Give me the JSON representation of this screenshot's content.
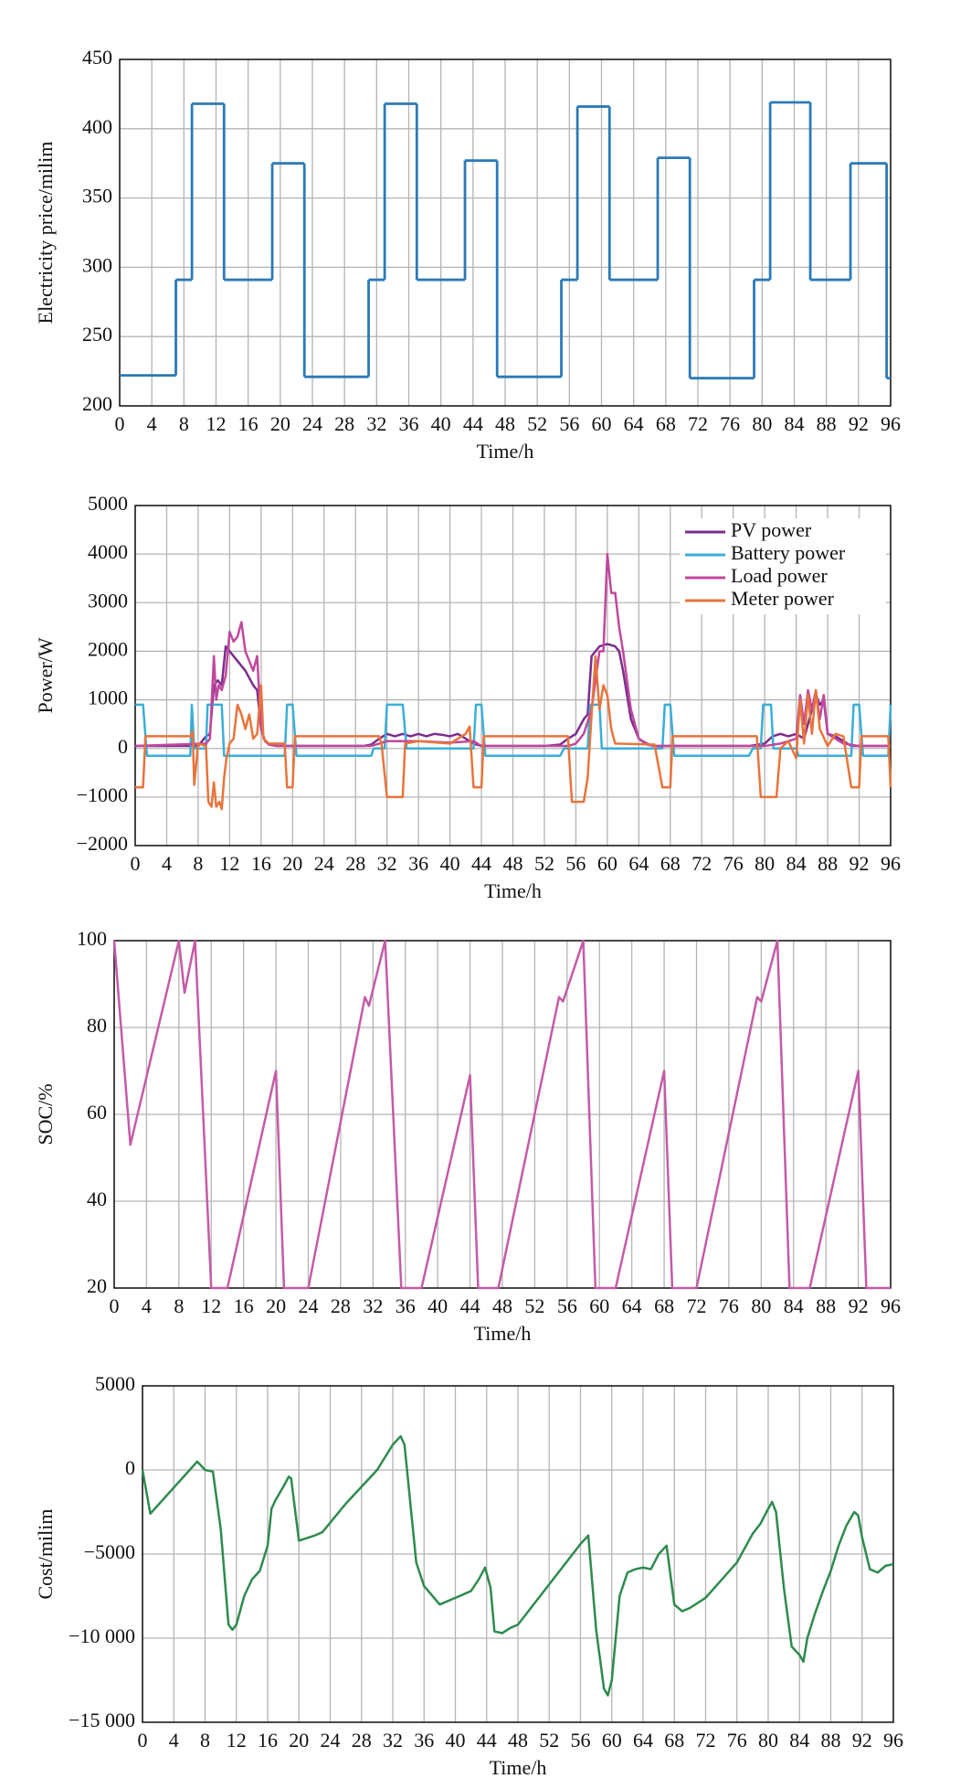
{
  "chart_data": [
    {
      "type": "line",
      "step": "post",
      "xlabel": "Time/h",
      "ylabel": "Electricity price/milim",
      "grid": true,
      "color": "#2a7ab8",
      "x": [
        0,
        7,
        9,
        13,
        19,
        23,
        31,
        33,
        37,
        43,
        47,
        55,
        57,
        61,
        67,
        71,
        79,
        81,
        86,
        91,
        95.5
      ],
      "values": [
        222,
        291,
        418,
        291,
        375,
        221,
        291,
        418,
        291,
        377,
        221,
        291,
        416,
        291,
        379,
        220,
        291,
        419,
        291,
        375,
        220
      ],
      "xlim": [
        0,
        96
      ],
      "xticks": [
        0,
        4,
        8,
        12,
        16,
        20,
        24,
        28,
        32,
        36,
        40,
        44,
        48,
        52,
        56,
        60,
        64,
        68,
        72,
        76,
        80,
        84,
        88,
        92,
        96
      ],
      "ylim": [
        200,
        450
      ],
      "yticks": [
        200,
        250,
        300,
        350,
        400,
        450
      ]
    },
    {
      "type": "line",
      "xlabel": "Time/h",
      "ylabel": "Power/W",
      "grid": true,
      "legend": "upper right",
      "xlim": [
        0,
        96
      ],
      "xticks": [
        0,
        4,
        8,
        12,
        16,
        20,
        24,
        28,
        32,
        36,
        40,
        44,
        48,
        52,
        56,
        60,
        64,
        68,
        72,
        76,
        80,
        84,
        88,
        92,
        96
      ],
      "ylim": [
        -2000,
        5000
      ],
      "yticks": [
        {
          "value": -2000,
          "label": "−2000"
        },
        {
          "value": -1000,
          "label": "−1000"
        },
        0,
        1000,
        2000,
        3000,
        4000,
        5000
      ],
      "series": [
        {
          "name": "PV power",
          "color": "#7b2d8e",
          "x": [
            0,
            8,
            9,
            9.5,
            10,
            10.5,
            11,
            11.5,
            12,
            13,
            14,
            15,
            15.5,
            16,
            16.5,
            17,
            18,
            28,
            29,
            30,
            31,
            32,
            33,
            34,
            35,
            36,
            37,
            38,
            39,
            40,
            41,
            42,
            43,
            44,
            52,
            54,
            55,
            56,
            57,
            57.5,
            58,
            59,
            60,
            61,
            61.5,
            62,
            63,
            64,
            65,
            66,
            78,
            80,
            81,
            82,
            83,
            84,
            85,
            86,
            86.5,
            87,
            87.5,
            88,
            89,
            90,
            91,
            96
          ],
          "values": [
            50,
            50,
            250,
            300,
            1300,
            1400,
            1300,
            2100,
            2000,
            1800,
            1600,
            1300,
            1200,
            400,
            150,
            80,
            50,
            50,
            50,
            80,
            200,
            300,
            250,
            300,
            250,
            300,
            250,
            300,
            280,
            250,
            300,
            200,
            100,
            50,
            50,
            80,
            200,
            300,
            600,
            700,
            1900,
            2100,
            2150,
            2100,
            2000,
            1600,
            600,
            200,
            100,
            50,
            50,
            100,
            250,
            300,
            250,
            300,
            200,
            800,
            1100,
            900,
            1000,
            300,
            250,
            150,
            50,
            50
          ]
        },
        {
          "name": "Battery power",
          "color": "#3aaed8",
          "x": [
            0,
            1,
            1.5,
            7,
            7.2,
            7.5,
            9,
            9.2,
            11,
            11.3,
            19,
            19.3,
            20,
            20.5,
            30,
            30.3,
            31.7,
            32,
            34,
            34.5,
            43,
            43.3,
            44,
            44.5,
            54,
            54.5,
            57.5,
            57.8,
            59,
            59.3,
            67,
            67.3,
            68,
            68.5,
            78,
            78.5,
            79.5,
            79.8,
            80.8,
            81.1,
            84,
            84.3,
            91,
            91.3,
            92,
            92.5,
            95.7,
            96
          ],
          "values": [
            900,
            900,
            -150,
            -150,
            900,
            0,
            0,
            900,
            900,
            -150,
            -150,
            900,
            900,
            -150,
            -150,
            0,
            0,
            900,
            900,
            0,
            0,
            900,
            900,
            -150,
            -150,
            0,
            0,
            900,
            900,
            0,
            0,
            900,
            900,
            -150,
            -150,
            0,
            0,
            900,
            900,
            0,
            0,
            -150,
            -150,
            900,
            900,
            -150,
            -150,
            900
          ]
        },
        {
          "name": "Load power",
          "color": "#c0489c",
          "x": [
            0,
            9,
            9.5,
            10,
            10.3,
            10.6,
            11,
            11.5,
            12,
            12.5,
            13,
            13.5,
            14,
            14.5,
            15,
            15.5,
            16,
            16.5,
            17,
            18,
            30,
            31,
            32,
            36,
            40,
            43,
            44,
            55,
            56,
            57,
            58,
            59,
            59.5,
            60,
            60.5,
            61,
            61.5,
            62,
            63,
            64,
            65,
            66,
            80,
            82,
            84,
            84.5,
            85,
            85.5,
            86,
            86.5,
            87,
            87.5,
            88,
            89,
            90,
            92,
            96
          ],
          "values": [
            50,
            100,
            200,
            1900,
            1000,
            1300,
            1200,
            1500,
            2400,
            2200,
            2300,
            2600,
            2000,
            1800,
            1600,
            1900,
            400,
            150,
            80,
            50,
            50,
            100,
            150,
            150,
            120,
            150,
            50,
            50,
            100,
            300,
            800,
            2000,
            2000,
            4000,
            3200,
            3200,
            2500,
            2000,
            800,
            200,
            80,
            50,
            50,
            100,
            200,
            1100,
            500,
            1200,
            800,
            1200,
            600,
            1100,
            300,
            200,
            100,
            50,
            50
          ]
        },
        {
          "name": "Meter power",
          "color": "#e8743b",
          "x": [
            0,
            1,
            1.3,
            7,
            7.3,
            7.5,
            8,
            9,
            9.3,
            9.7,
            10,
            10.3,
            10.7,
            11,
            11.3,
            11.6,
            12,
            12.5,
            13,
            13.5,
            14,
            14.5,
            15,
            15.5,
            16,
            16.3,
            17,
            19,
            19.3,
            20,
            20.3,
            31,
            31.3,
            32,
            34,
            34.3,
            36,
            40,
            42,
            42.5,
            43,
            44,
            44.3,
            55,
            55.5,
            57,
            57.5,
            58,
            58.5,
            59,
            59.5,
            60,
            60.5,
            61,
            66,
            67,
            68,
            68.3,
            79,
            79.5,
            81.5,
            82,
            83,
            84,
            84.5,
            85,
            85.5,
            86,
            86.5,
            87,
            88,
            89,
            90,
            91,
            92,
            92.3,
            95.7,
            96
          ],
          "values": [
            -800,
            -800,
            250,
            250,
            350,
            -750,
            100,
            50,
            -1100,
            -1200,
            -700,
            -1200,
            -1100,
            -1250,
            -600,
            -200,
            100,
            200,
            900,
            700,
            400,
            700,
            200,
            300,
            1300,
            200,
            100,
            100,
            -800,
            -800,
            250,
            250,
            100,
            -1000,
            -1000,
            100,
            150,
            100,
            300,
            450,
            -800,
            -800,
            250,
            250,
            -1100,
            -1100,
            -600,
            700,
            1900,
            800,
            1300,
            1100,
            400,
            100,
            80,
            -800,
            -800,
            250,
            250,
            -1000,
            -1000,
            0,
            150,
            -200,
            1000,
            100,
            1100,
            300,
            1200,
            400,
            50,
            300,
            250,
            -800,
            -800,
            250,
            250,
            -800
          ]
        }
      ]
    },
    {
      "type": "line",
      "xlabel": "Time/h",
      "ylabel": "SOC/%",
      "grid": true,
      "color": "#c45ba6",
      "x": [
        0,
        2,
        8,
        8.7,
        10,
        12,
        14,
        20,
        21,
        24,
        31,
        31.5,
        33.5,
        35.5,
        38,
        44,
        45,
        47.5,
        55,
        55.5,
        58,
        59.5,
        62,
        68,
        69,
        72,
        79.5,
        80,
        82,
        83.5,
        86,
        92,
        93,
        96
      ],
      "values": [
        100,
        53,
        100,
        88,
        100,
        20,
        20,
        70,
        20,
        20,
        87,
        85,
        100,
        20,
        20,
        69,
        20,
        20,
        87,
        86,
        100,
        20,
        20,
        70,
        20,
        20,
        87,
        86,
        100,
        20,
        20,
        70,
        20,
        20
      ],
      "xlim": [
        0,
        96
      ],
      "xticks": [
        0,
        4,
        8,
        12,
        16,
        20,
        24,
        28,
        32,
        36,
        40,
        44,
        48,
        52,
        56,
        60,
        64,
        68,
        72,
        76,
        80,
        84,
        88,
        92,
        96
      ],
      "ylim": [
        20,
        100
      ],
      "yticks": [
        20,
        40,
        60,
        80,
        100
      ]
    },
    {
      "type": "line",
      "xlabel": "Time/h",
      "ylabel": "Cost/milim",
      "grid": true,
      "color": "#2e8b4e",
      "x": [
        0,
        1,
        7,
        8,
        9,
        10,
        11,
        11.5,
        12,
        13,
        14,
        15,
        16,
        16.5,
        17,
        18,
        18.7,
        19,
        20,
        22,
        23,
        26,
        28,
        30,
        32,
        33,
        33.5,
        35,
        36,
        38,
        40,
        42,
        43,
        43.8,
        44.5,
        45,
        46,
        47,
        48,
        52,
        56,
        57,
        58,
        59,
        59.5,
        60,
        61,
        62,
        63,
        64,
        65,
        66,
        67,
        68,
        69,
        70,
        72,
        76,
        78,
        79,
        80,
        80.5,
        81,
        82,
        83,
        84,
        84.5,
        85,
        86,
        87,
        88,
        89,
        90,
        91,
        91.5,
        92,
        93,
        94,
        95,
        96
      ],
      "values": [
        0,
        -2600,
        500,
        0,
        -100,
        -3500,
        -9200,
        -9500,
        -9200,
        -7500,
        -6500,
        -6000,
        -4500,
        -2300,
        -1800,
        -1000,
        -400,
        -500,
        -4200,
        -3900,
        -3700,
        -2000,
        -1000,
        0,
        1500,
        2000,
        1500,
        -5500,
        -6900,
        -8000,
        -7600,
        -7200,
        -6500,
        -5800,
        -7000,
        -9600,
        -9700,
        -9400,
        -9200,
        -6800,
        -4400,
        -3900,
        -9500,
        -13000,
        -13400,
        -12500,
        -7500,
        -6100,
        -5900,
        -5800,
        -5900,
        -5000,
        -4500,
        -8000,
        -8400,
        -8200,
        -7600,
        -5500,
        -3800,
        -3200,
        -2300,
        -1900,
        -2500,
        -7000,
        -10500,
        -11000,
        -11400,
        -10000,
        -8500,
        -7200,
        -6000,
        -4500,
        -3300,
        -2500,
        -2700,
        -4000,
        -5900,
        -6100,
        -5700,
        -5600
      ],
      "xlim": [
        0,
        96
      ],
      "xticks": [
        0,
        4,
        8,
        12,
        16,
        20,
        24,
        28,
        32,
        36,
        40,
        44,
        48,
        52,
        56,
        60,
        64,
        68,
        72,
        76,
        80,
        84,
        88,
        92,
        96
      ],
      "ylim": [
        -15000,
        5000
      ],
      "yticks": [
        {
          "value": -15000,
          "label": "−15 000"
        },
        {
          "value": -10000,
          "label": "−10 000"
        },
        {
          "value": -5000,
          "label": "−5000"
        },
        0,
        5000
      ]
    }
  ]
}
